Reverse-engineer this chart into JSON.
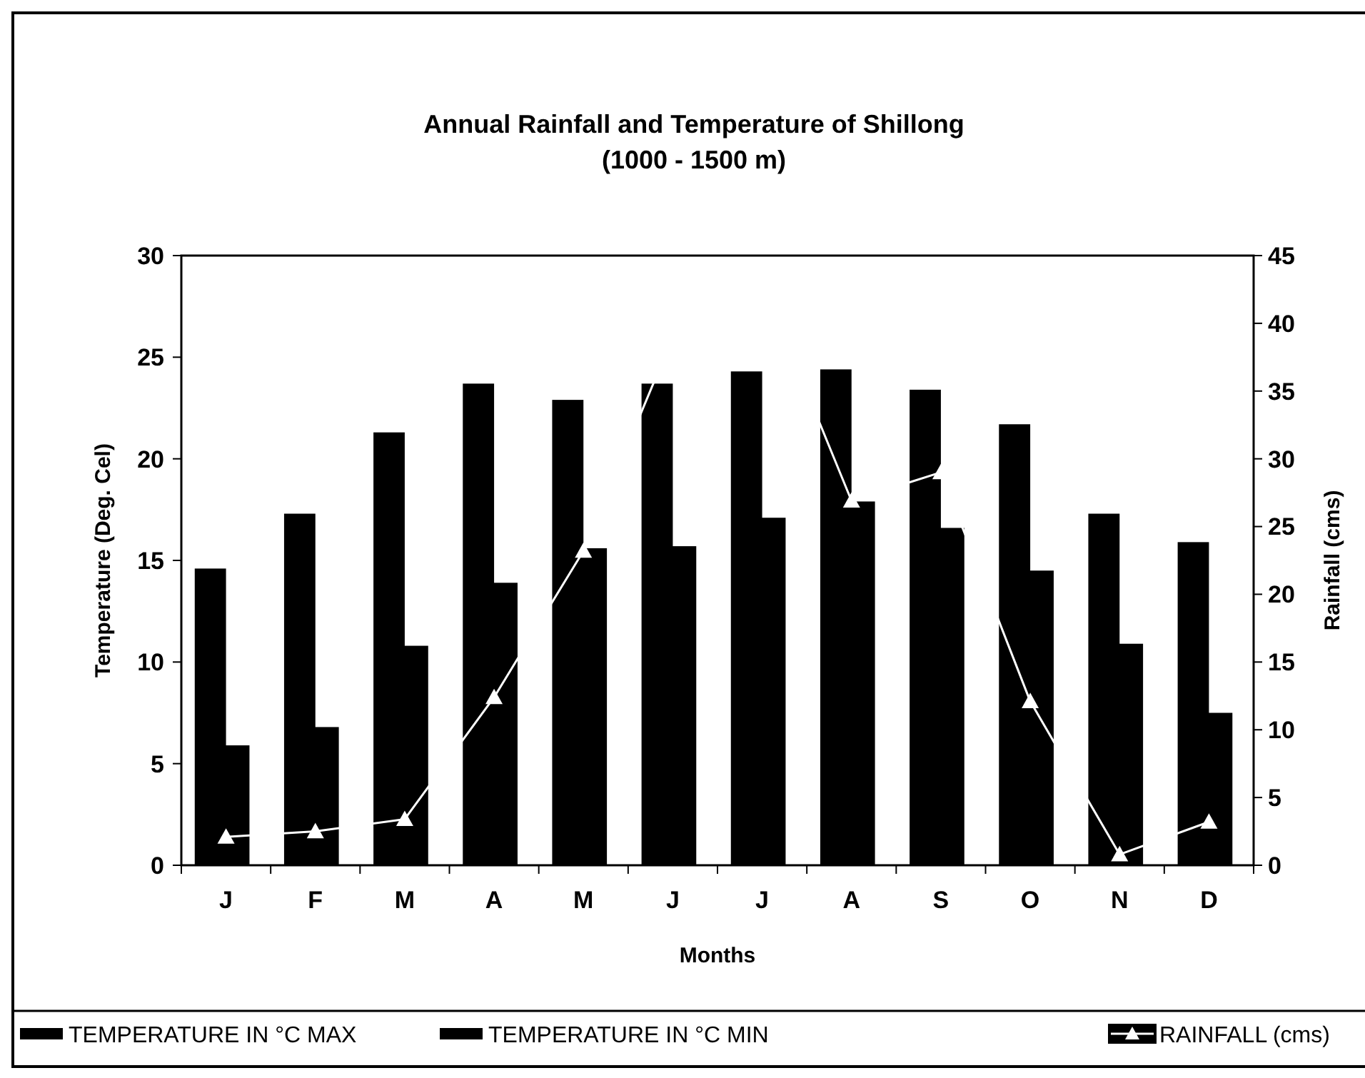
{
  "chart_data": {
    "type": "bar",
    "title": "Annual Rainfall and Temperature of Shillong",
    "subtitle": "(1000 - 1500 m)",
    "xlabel": "Months",
    "ylabel": "Temperature (Deg. Cel)",
    "y2label": "Rainfall (cms)",
    "categories": [
      "J",
      "F",
      "M",
      "A",
      "M",
      "J",
      "J",
      "A",
      "S",
      "O",
      "N",
      "D"
    ],
    "series": [
      {
        "name": "TEMPERATURE IN °C MAX",
        "color": "#000000",
        "values": [
          14.6,
          17.3,
          21.3,
          23.7,
          22.9,
          23.7,
          24.3,
          24.4,
          23.4,
          21.7,
          17.3,
          15.9
        ]
      },
      {
        "name": "TEMPERATURE IN °C MIN",
        "color": "#000000",
        "values": [
          5.9,
          6.8,
          10.8,
          13.9,
          15.6,
          15.7,
          17.1,
          17.9,
          16.6,
          14.5,
          10.9,
          7.5
        ]
      },
      {
        "name": "RAINFALL (cms)",
        "type": "line",
        "axis": "y2",
        "color": "#ffffff",
        "marker": "triangle",
        "values": [
          2.1,
          2.5,
          3.4,
          12.4,
          23.2,
          39,
          43,
          26.9,
          29,
          12.1,
          0.8,
          3.2
        ]
      }
    ],
    "ylim": [
      0,
      30
    ],
    "yticks": [
      0,
      5,
      10,
      15,
      20,
      25,
      30
    ],
    "y2lim": [
      0,
      45
    ],
    "y2ticks": [
      0,
      5,
      10,
      15,
      20,
      25,
      30,
      35,
      40,
      45
    ],
    "grid": false,
    "legend": "bottom"
  }
}
